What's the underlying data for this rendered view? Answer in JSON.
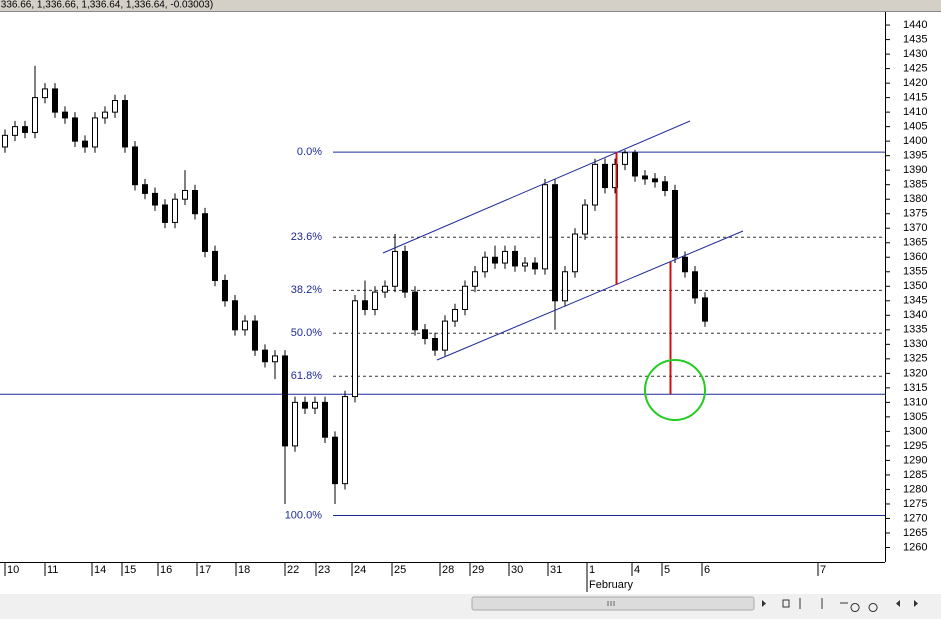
{
  "chart_data": {
    "type": "candlestick",
    "status_text": ",336.66, 1,336.66, 1,336.64, 1,336.64, -0.03003)",
    "x": [
      1,
      3,
      5,
      7,
      9,
      11,
      13,
      15,
      17,
      19,
      21,
      23,
      25,
      27,
      29,
      31,
      33,
      35,
      37,
      39,
      41,
      43,
      45,
      47,
      49,
      51,
      53,
      55,
      57,
      59,
      61,
      63,
      65,
      67,
      69,
      71,
      73,
      75,
      77,
      79,
      81,
      83,
      85,
      87,
      89,
      91,
      93,
      95,
      97,
      99,
      101,
      103,
      105,
      107,
      109,
      111,
      113,
      115,
      117,
      119,
      121,
      123,
      125,
      127,
      129,
      131,
      133,
      135,
      137,
      139,
      141
    ],
    "open": [
      1398,
      1402,
      1405,
      1403,
      1415,
      1418,
      1410,
      1408,
      1400,
      1398,
      1408,
      1410,
      1414,
      1398,
      1385,
      1382,
      1378,
      1372,
      1380,
      1383,
      1375,
      1362,
      1352,
      1345,
      1335,
      1338,
      1328,
      1324,
      1326,
      1295,
      1310,
      1308,
      1310,
      1298,
      1282,
      1312,
      1345,
      1342,
      1348,
      1350,
      1362,
      1348,
      1335,
      1332,
      1328,
      1338,
      1342,
      1350,
      1355,
      1360,
      1358,
      1362,
      1357,
      1358,
      1356,
      1385,
      1345,
      1355,
      1368,
      1378,
      1392,
      1384,
      1392,
      1396,
      1388,
      1387,
      1386,
      1383,
      1360,
      1355,
      1346
    ],
    "high": [
      1404,
      1407,
      1407,
      1426,
      1420,
      1420,
      1412,
      1410,
      1402,
      1410,
      1412,
      1416,
      1416,
      1400,
      1387,
      1384,
      1380,
      1382,
      1390,
      1385,
      1377,
      1364,
      1354,
      1347,
      1340,
      1340,
      1330,
      1328,
      1328,
      1312,
      1312,
      1312,
      1312,
      1300,
      1314,
      1347,
      1352,
      1350,
      1352,
      1368,
      1364,
      1350,
      1337,
      1334,
      1340,
      1344,
      1352,
      1357,
      1362,
      1364,
      1364,
      1364,
      1360,
      1360,
      1387,
      1387,
      1357,
      1370,
      1380,
      1394,
      1394,
      1394,
      1397,
      1397,
      1390,
      1389,
      1388,
      1385,
      1362,
      1357,
      1348
    ],
    "low": [
      1396,
      1400,
      1401,
      1401,
      1413,
      1408,
      1406,
      1398,
      1396,
      1396,
      1406,
      1408,
      1396,
      1383,
      1380,
      1376,
      1370,
      1370,
      1378,
      1373,
      1360,
      1350,
      1343,
      1333,
      1333,
      1326,
      1322,
      1318,
      1275,
      1293,
      1306,
      1306,
      1296,
      1275,
      1280,
      1310,
      1340,
      1340,
      1346,
      1348,
      1346,
      1333,
      1330,
      1326,
      1326,
      1336,
      1340,
      1348,
      1353,
      1356,
      1356,
      1355,
      1355,
      1354,
      1354,
      1335,
      1343,
      1353,
      1366,
      1376,
      1382,
      1382,
      1390,
      1386,
      1385,
      1384,
      1381,
      1358,
      1353,
      1344,
      1336
    ],
    "close": [
      1402,
      1405,
      1403,
      1415,
      1418,
      1410,
      1408,
      1400,
      1398,
      1408,
      1410,
      1414,
      1398,
      1385,
      1382,
      1378,
      1372,
      1380,
      1383,
      1375,
      1362,
      1352,
      1345,
      1335,
      1338,
      1328,
      1324,
      1326,
      1295,
      1310,
      1308,
      1310,
      1298,
      1282,
      1312,
      1345,
      1342,
      1348,
      1350,
      1362,
      1348,
      1335,
      1332,
      1328,
      1338,
      1342,
      1350,
      1355,
      1360,
      1358,
      1362,
      1357,
      1358,
      1356,
      1385,
      1345,
      1355,
      1368,
      1378,
      1392,
      1384,
      1392,
      1396,
      1388,
      1387,
      1386,
      1383,
      1360,
      1355,
      1346,
      1338
    ],
    "xlim": [
      0,
      177
    ],
    "xticks": [
      {
        "value": 1,
        "label": "10"
      },
      {
        "value": 9,
        "label": "11"
      },
      {
        "value": 18.4,
        "label": "14"
      },
      {
        "value": 24.4,
        "label": "15"
      },
      {
        "value": 31.6,
        "label": "16"
      },
      {
        "value": 39.4,
        "label": "17"
      },
      {
        "value": 47.2,
        "label": "18"
      },
      {
        "value": 57,
        "label": "22"
      },
      {
        "value": 63.2,
        "label": "23"
      },
      {
        "value": 70.4,
        "label": "24"
      },
      {
        "value": 78.4,
        "label": "25"
      },
      {
        "value": 88,
        "label": "28"
      },
      {
        "value": 94,
        "label": "29"
      },
      {
        "value": 101.8,
        "label": "30"
      },
      {
        "value": 109.6,
        "label": "31"
      },
      {
        "value": 117.4,
        "label": "1"
      },
      {
        "value": 126.4,
        "label": "4"
      },
      {
        "value": 132.4,
        "label": "5"
      },
      {
        "value": 140.4,
        "label": "6"
      },
      {
        "value": 163.6,
        "label": "7"
      }
    ],
    "xgroups": [
      {
        "value": 117.4,
        "label": "February"
      }
    ],
    "ylim": [
      1255,
      1444.5
    ],
    "yticks": [
      1260,
      1265,
      1270,
      1275,
      1280,
      1285,
      1290,
      1295,
      1300,
      1305,
      1310,
      1315,
      1320,
      1325,
      1330,
      1335,
      1340,
      1345,
      1350,
      1355,
      1360,
      1365,
      1370,
      1375,
      1380,
      1385,
      1390,
      1395,
      1400,
      1405,
      1410,
      1415,
      1420,
      1425,
      1430,
      1435,
      1440
    ],
    "fib_levels": [
      {
        "value": 1396.2,
        "label": "0.0%"
      },
      {
        "value": 1366.9,
        "label": "23.6%"
      },
      {
        "value": 1348.6,
        "label": "38.2%"
      },
      {
        "value": 1333.8,
        "label": "50.0%"
      },
      {
        "value": 1319,
        "label": "61.8%"
      },
      {
        "value": 1271,
        "label": "100.0%"
      }
    ],
    "hlines": [
      1312.8
    ]
  }
}
